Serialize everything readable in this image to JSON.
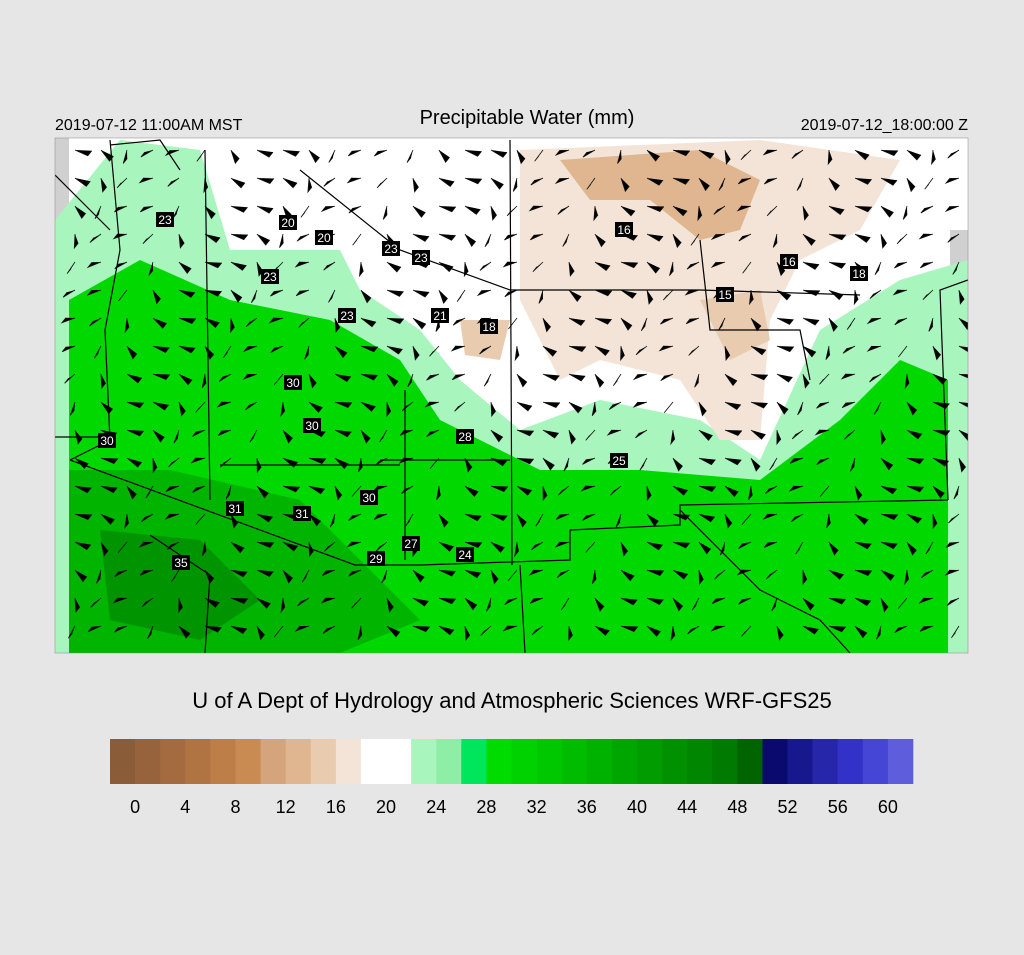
{
  "header": {
    "left": "2019-07-12 11:00AM MST",
    "title": "Precipitable Water (mm)",
    "right": "2019-07-12_18:00:00 Z"
  },
  "stations": [
    23,
    20,
    20,
    23,
    23,
    23,
    23,
    21,
    18,
    16,
    16,
    18,
    15,
    30,
    30,
    30,
    28,
    25,
    30,
    31,
    31,
    27,
    29,
    24,
    35
  ],
  "credit": "U of A Dept of Hydrology and Atmospheric Sciences WRF-GFS25",
  "colorbar": {
    "lim": [
      -2,
      62
    ],
    "ticks": [
      0,
      4,
      8,
      12,
      16,
      20,
      24,
      28,
      32,
      36,
      40,
      44,
      48,
      52,
      56,
      60
    ],
    "colors": [
      "#8a5c38",
      "#96633c",
      "#a36b3f",
      "#b07443",
      "#bd7e48",
      "#c98b52",
      "#d4a47c",
      "#dfb690",
      "#e9cbb0",
      "#f3e4d7",
      "#ffffff",
      "#ffffff",
      "#a8f5bd",
      "#8eeea6",
      "#00e65c",
      "#00dc00",
      "#00d200",
      "#00c800",
      "#00bc00",
      "#00b200",
      "#00a600",
      "#009c00",
      "#009000",
      "#008600",
      "#007a00",
      "#006400",
      "#0a0a6e",
      "#18188e",
      "#2626aa",
      "#3232c8",
      "#4646d6",
      "#5e5edc"
    ]
  }
}
